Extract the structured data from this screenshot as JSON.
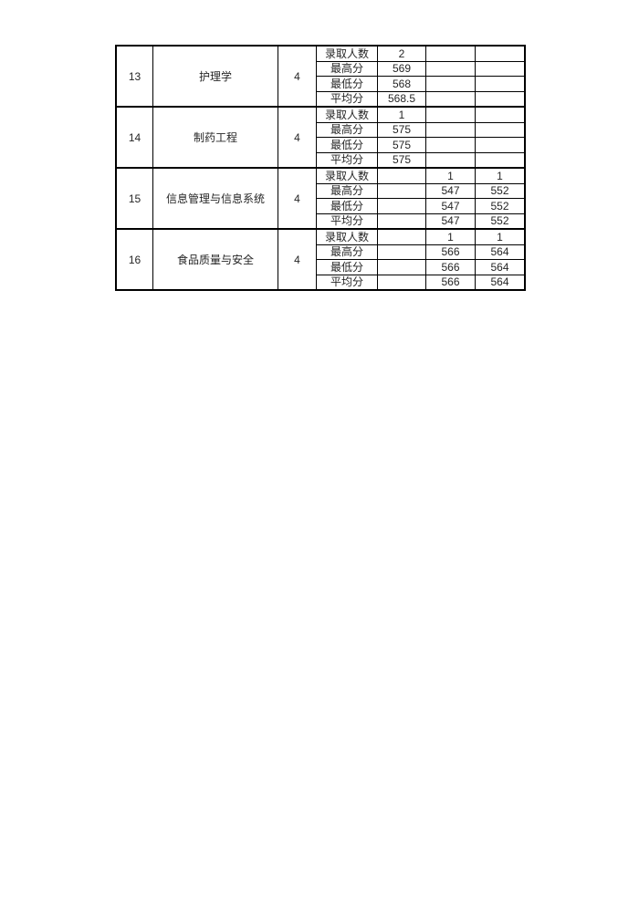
{
  "page": {
    "background_color": "#ffffff",
    "text_color": "#262626",
    "table_border_color": "#000000"
  },
  "table": {
    "groups": [
      {
        "no": "13",
        "major": "护理学",
        "years": "4",
        "rows": [
          {
            "label": "录取人数",
            "values": [
              "2",
              "",
              ""
            ]
          },
          {
            "label": "最高分",
            "values": [
              "569",
              "",
              ""
            ]
          },
          {
            "label": "最低分",
            "values": [
              "568",
              "",
              ""
            ]
          },
          {
            "label": "平均分",
            "values": [
              "568.5",
              "",
              ""
            ]
          }
        ]
      },
      {
        "no": "14",
        "major": "制药工程",
        "years": "4",
        "rows": [
          {
            "label": "录取人数",
            "values": [
              "1",
              "",
              ""
            ]
          },
          {
            "label": "最高分",
            "values": [
              "575",
              "",
              ""
            ]
          },
          {
            "label": "最低分",
            "values": [
              "575",
              "",
              ""
            ]
          },
          {
            "label": "平均分",
            "values": [
              "575",
              "",
              ""
            ]
          }
        ]
      },
      {
        "no": "15",
        "major": "信息管理与信息系统",
        "years": "4",
        "rows": [
          {
            "label": "录取人数",
            "values": [
              "",
              "1",
              "1"
            ]
          },
          {
            "label": "最高分",
            "values": [
              "",
              "547",
              "552"
            ]
          },
          {
            "label": "最低分",
            "values": [
              "",
              "547",
              "552"
            ]
          },
          {
            "label": "平均分",
            "values": [
              "",
              "547",
              "552"
            ]
          }
        ]
      },
      {
        "no": "16",
        "major": "食品质量与安全",
        "years": "4",
        "rows": [
          {
            "label": "录取人数",
            "values": [
              "",
              "1",
              "1"
            ]
          },
          {
            "label": "最高分",
            "values": [
              "",
              "566",
              "564"
            ]
          },
          {
            "label": "最低分",
            "values": [
              "",
              "566",
              "564"
            ]
          },
          {
            "label": "平均分",
            "values": [
              "",
              "566",
              "564"
            ]
          }
        ]
      }
    ]
  }
}
